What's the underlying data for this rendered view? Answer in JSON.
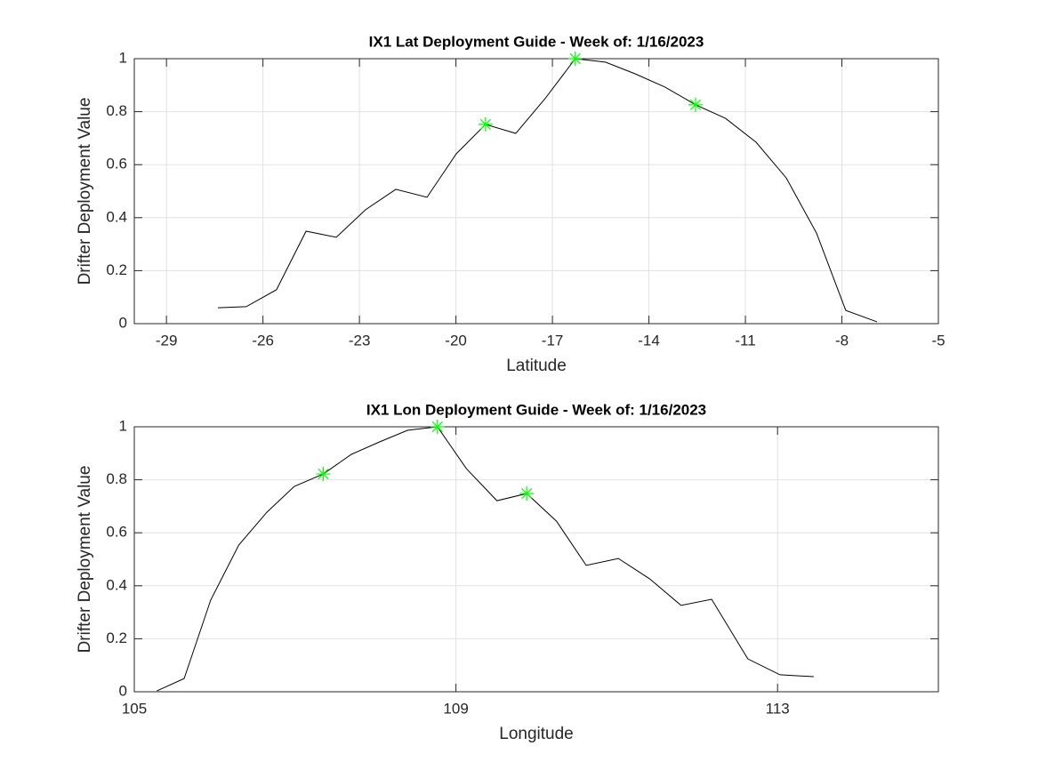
{
  "chart_data": [
    {
      "type": "line",
      "title": "IX1 Lat Deployment Guide - Week of: 1/16/2023",
      "xlabel": "Latitude",
      "ylabel": "Drifter Deployment Value",
      "xlim": [
        -30,
        -5
      ],
      "xticks": [
        -29,
        -26,
        -23,
        -20,
        -17,
        -14,
        -11,
        -8,
        -5
      ],
      "ylim": [
        0,
        1
      ],
      "yticks": [
        0,
        0.2,
        0.4,
        0.6,
        0.8,
        1
      ],
      "grid": true,
      "series": [
        {
          "color": "#000000",
          "marker": "none",
          "x": [
            -27.4,
            -26.52,
            -25.58,
            -24.66,
            -23.72,
            -22.81,
            -21.87,
            -20.9,
            -19.99,
            -19.08,
            -18.14,
            -17.23,
            -16.29,
            -15.35,
            -14.43,
            -13.5,
            -12.55,
            -11.62,
            -10.67,
            -9.73,
            -8.79,
            -7.88,
            -6.91
          ],
          "values": [
            0.06,
            0.064,
            0.128,
            0.349,
            0.326,
            0.43,
            0.507,
            0.477,
            0.641,
            0.752,
            0.718,
            0.849,
            1.0,
            0.987,
            0.943,
            0.893,
            0.826,
            0.775,
            0.685,
            0.55,
            0.342,
            0.05,
            0.007
          ]
        },
        {
          "color": "#00ff00",
          "marker": "asterisk",
          "x": [
            -19.08,
            -16.29,
            -12.55
          ],
          "values": [
            0.752,
            1.0,
            0.826
          ]
        }
      ]
    },
    {
      "type": "line",
      "title": "IX1 Lon Deployment Guide - Week of: 1/16/2023",
      "xlabel": "Longitude",
      "ylabel": "Drifter Deployment Value",
      "xlim": [
        105,
        115
      ],
      "xticks": [
        105,
        109,
        113
      ],
      "ylim": [
        0,
        1
      ],
      "yticks": [
        0,
        0.2,
        0.4,
        0.6,
        0.8,
        1
      ],
      "grid": true,
      "series": [
        {
          "color": "#000000",
          "marker": "none",
          "x": [
            105.28,
            105.62,
            105.95,
            106.3,
            106.65,
            106.99,
            107.35,
            107.7,
            108.05,
            108.4,
            108.77,
            109.13,
            109.51,
            109.88,
            110.25,
            110.62,
            111.02,
            111.41,
            111.8,
            112.18,
            112.63,
            113.03,
            113.45
          ],
          "values": [
            0.003,
            0.05,
            0.346,
            0.554,
            0.678,
            0.775,
            0.822,
            0.896,
            0.943,
            0.987,
            1.0,
            0.842,
            0.721,
            0.748,
            0.644,
            0.477,
            0.503,
            0.426,
            0.326,
            0.349,
            0.124,
            0.064,
            0.057
          ]
        },
        {
          "color": "#00ff00",
          "marker": "asterisk",
          "x": [
            107.35,
            108.77,
            109.88
          ],
          "values": [
            0.822,
            1.0,
            0.748
          ]
        }
      ]
    }
  ]
}
